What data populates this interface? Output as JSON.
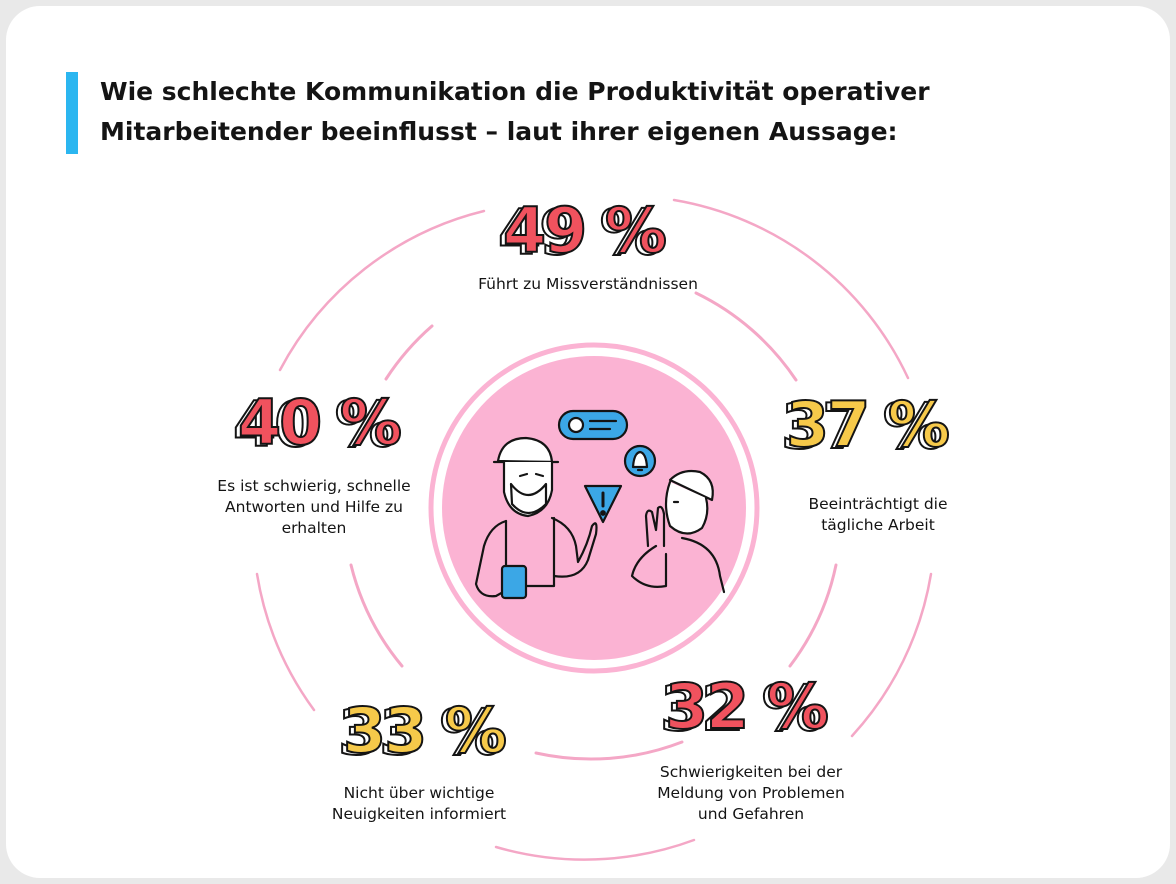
{
  "title": "Wie schlechte Kommunikation die Produktivität operativer Mitarbeitender beeinflusst – laut ihrer eigenen Aussage:",
  "colors": {
    "accent_bar": "#2bb6f0",
    "ring": "#f4a7c6",
    "center_circle": "#fbb3d3",
    "red": "#f0525e",
    "yellow": "#f6c94a",
    "blue": "#3ba7e6"
  },
  "chart_data": {
    "type": "infographic-percentages",
    "unit": "%",
    "items": [
      {
        "value": 49,
        "value_label": "49 %",
        "label_lines": [
          "Führt zu Missverständnissen"
        ],
        "color": "#f0525e"
      },
      {
        "value": 37,
        "value_label": "37 %",
        "label_lines": [
          "Beeinträchtigt die",
          "tägliche Arbeit"
        ],
        "color": "#f6c94a"
      },
      {
        "value": 32,
        "value_label": "32 %",
        "label_lines": [
          "Schwierigkeiten bei der",
          "Meldung von Problemen",
          "und Gefahren"
        ],
        "color": "#f0525e"
      },
      {
        "value": 33,
        "value_label": "33 %",
        "label_lines": [
          "Nicht über wichtige",
          "Neuigkeiten informiert"
        ],
        "color": "#f6c94a"
      },
      {
        "value": 40,
        "value_label": "40 %",
        "label_lines": [
          "Es ist schwierig, schnelle",
          "Antworten und Hilfe zu",
          "erhalten"
        ],
        "color": "#f0525e"
      }
    ],
    "center_icons": [
      "worker-illustration",
      "bell-icon",
      "warning-icon",
      "chat-bubble-icon"
    ]
  }
}
